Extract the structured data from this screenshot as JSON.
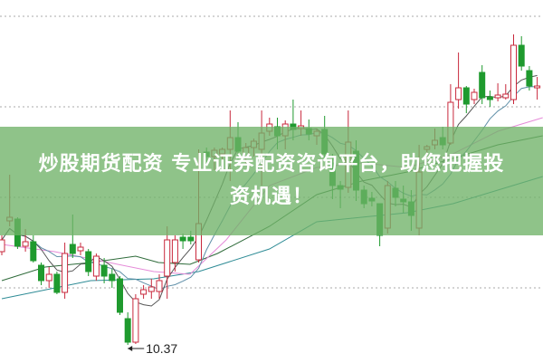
{
  "chart_data": {
    "type": "candlestick",
    "ylim": [
      10.17,
      14.18
    ],
    "gridlines": [
      11,
      12,
      13,
      14
    ],
    "grid": "horizontal dotted",
    "colors": {
      "up": "#c8283c",
      "down": "#1f9a2e",
      "ma5": "#555555",
      "ma10": "#5f8fa8",
      "ma20": "#e58ad8",
      "ma30": "#2e6b3a",
      "ma60": "#2f8c96",
      "grid": "#aaaaaa"
    },
    "candles": [
      [
        11.4,
        11.58,
        11.36,
        11.53
      ],
      [
        11.74,
        12.25,
        11.68,
        11.78
      ],
      [
        11.76,
        11.78,
        11.43,
        11.46
      ],
      [
        11.46,
        11.65,
        11.4,
        11.51
      ],
      [
        11.51,
        11.58,
        11.28,
        11.3
      ],
      [
        11.25,
        11.28,
        11.03,
        11.08
      ],
      [
        11.08,
        11.23,
        11.0,
        11.15
      ],
      [
        11.15,
        11.18,
        10.93,
        10.95
      ],
      [
        10.95,
        11.5,
        10.88,
        11.38
      ],
      [
        11.48,
        11.81,
        11.33,
        11.38
      ],
      [
        11.41,
        11.5,
        11.36,
        11.45
      ],
      [
        11.4,
        11.43,
        11.13,
        11.18
      ],
      [
        11.13,
        11.38,
        11.08,
        11.35
      ],
      [
        11.25,
        11.33,
        11.05,
        11.13
      ],
      [
        11.15,
        11.21,
        11.0,
        11.08
      ],
      [
        11.1,
        11.13,
        10.7,
        10.73
      ],
      [
        10.66,
        10.73,
        10.37,
        10.4
      ],
      [
        10.4,
        10.93,
        10.38,
        10.88
      ],
      [
        10.93,
        11.03,
        10.88,
        10.98
      ],
      [
        10.96,
        11.1,
        10.88,
        11.01
      ],
      [
        10.96,
        11.15,
        10.88,
        11.08
      ],
      [
        11.13,
        11.68,
        10.88,
        11.53
      ],
      [
        11.28,
        11.58,
        11.18,
        11.53
      ],
      [
        11.56,
        11.6,
        11.43,
        11.52
      ],
      [
        11.56,
        11.63,
        11.48,
        11.52
      ],
      [
        11.31,
        12.53,
        11.28,
        11.71
      ],
      [
        12.5,
        12.55,
        12.35,
        12.45
      ],
      [
        12.45,
        12.55,
        12.3,
        12.52
      ],
      [
        12.48,
        12.55,
        12.4,
        12.53
      ],
      [
        12.53,
        12.96,
        12.18,
        12.66
      ],
      [
        12.66,
        12.83,
        12.38,
        12.51
      ],
      [
        12.45,
        12.6,
        12.35,
        12.55
      ],
      [
        12.55,
        12.65,
        12.45,
        12.62
      ],
      [
        12.53,
        12.96,
        12.13,
        12.71
      ],
      [
        12.73,
        12.88,
        12.68,
        12.81
      ],
      [
        12.78,
        12.88,
        12.53,
        12.68
      ],
      [
        12.68,
        12.85,
        12.53,
        12.81
      ],
      [
        12.81,
        13.08,
        12.63,
        12.75
      ],
      [
        12.76,
        12.96,
        12.68,
        12.79
      ],
      [
        12.76,
        12.86,
        12.63,
        12.7
      ],
      [
        12.68,
        12.76,
        12.58,
        12.73
      ],
      [
        12.75,
        12.9,
        12.43,
        12.48
      ],
      [
        12.38,
        12.48,
        11.98,
        12.13
      ],
      [
        12.13,
        12.18,
        11.88,
        12.09
      ],
      [
        12.11,
        12.96,
        12.05,
        12.61
      ],
      [
        12.51,
        12.63,
        11.96,
        12.08
      ],
      [
        12.08,
        12.13,
        11.88,
        11.93
      ],
      [
        11.99,
        12.06,
        11.9,
        11.96
      ],
      [
        11.93,
        11.93,
        11.46,
        11.58
      ],
      [
        11.66,
        12.18,
        11.6,
        12.13
      ],
      [
        12.1,
        12.18,
        11.9,
        12.0
      ],
      [
        11.98,
        12.13,
        11.83,
        11.95
      ],
      [
        11.95,
        12.08,
        11.63,
        11.8
      ],
      [
        11.66,
        12.58,
        11.58,
        12.28
      ],
      [
        12.53,
        12.58,
        12.46,
        12.56
      ],
      [
        12.58,
        12.76,
        12.53,
        12.63
      ],
      [
        12.66,
        12.78,
        12.53,
        12.58
      ],
      [
        12.6,
        13.25,
        12.58,
        13.05
      ],
      [
        13.08,
        13.6,
        12.98,
        13.21
      ],
      [
        13.21,
        13.23,
        12.93,
        13.03
      ],
      [
        13.08,
        13.2,
        13.03,
        13.16
      ],
      [
        13.38,
        13.46,
        13.03,
        13.1
      ],
      [
        13.11,
        13.18,
        13.0,
        13.08
      ],
      [
        13.1,
        13.26,
        13.06,
        13.13
      ],
      [
        13.1,
        13.25,
        13.08,
        13.14
      ],
      [
        13.08,
        13.8,
        13.03,
        13.68
      ],
      [
        13.68,
        13.78,
        13.4,
        13.45
      ],
      [
        13.4,
        13.45,
        13.18,
        13.23
      ],
      [
        13.21,
        13.33,
        13.08,
        13.23
      ]
    ],
    "ma_lines": {
      "ma20": [
        [
          0,
          11.48
        ],
        [
          6.7,
          11.4
        ],
        [
          13.6,
          11.28
        ],
        [
          19.3,
          11.18
        ],
        [
          23.9,
          11.15
        ],
        [
          28.5,
          11.53
        ],
        [
          34,
          12.13
        ],
        [
          40,
          12.33
        ],
        [
          45.7,
          12.38
        ],
        [
          51.5,
          12.33
        ],
        [
          57.3,
          12.48
        ],
        [
          63,
          12.73
        ],
        [
          68.7,
          12.88
        ]
      ],
      "ma30": [
        [
          0,
          11.08
        ],
        [
          5.5,
          11.23
        ],
        [
          11.3,
          11.28
        ],
        [
          17,
          11.35
        ],
        [
          19.9,
          11.28
        ],
        [
          23.9,
          11.26
        ],
        [
          27.4,
          11.38
        ],
        [
          34,
          11.68
        ],
        [
          40,
          12.03
        ],
        [
          45.7,
          12.18
        ],
        [
          51.5,
          12.28
        ],
        [
          57.3,
          12.43
        ],
        [
          63,
          12.58
        ],
        [
          68.7,
          12.68
        ]
      ],
      "ma60": [
        [
          0,
          10.88
        ],
        [
          11.3,
          11.08
        ],
        [
          19.3,
          11.1
        ],
        [
          25,
          11.18
        ],
        [
          34,
          11.43
        ],
        [
          40,
          11.73
        ],
        [
          45.7,
          11.78
        ],
        [
          51.5,
          11.83
        ],
        [
          57.3,
          11.93
        ],
        [
          63,
          12.08
        ],
        [
          68.7,
          12.23
        ]
      ]
    },
    "annotations": [
      {
        "text": "10.37",
        "candle_index": 16,
        "value": 10.37
      }
    ]
  },
  "banner": {
    "line1": "炒股期货配资 专业证券配资咨询平台，助您把握投",
    "line2": "资机遇！"
  }
}
